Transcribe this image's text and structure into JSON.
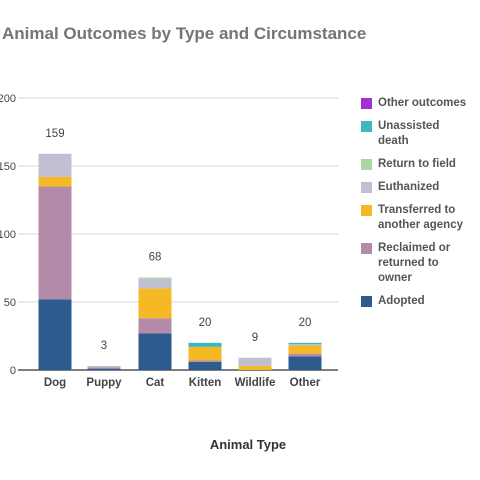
{
  "chart_data": {
    "type": "bar",
    "stacked": true,
    "title": "Animal Outcomes by Type and Circumstance",
    "xlabel": "Animal Type",
    "ylabel": "",
    "ylim": [
      0,
      200
    ],
    "yticks": [
      "200",
      "150",
      "100",
      "50",
      "0"
    ],
    "ytick_values": [
      200,
      150,
      100,
      50,
      0
    ],
    "grid": true,
    "legend_position": "right",
    "categories": [
      "Dog",
      "Puppy",
      "Cat",
      "Kitten",
      "Wildlife",
      "Other"
    ],
    "totals": [
      "159",
      "3",
      "68",
      "20",
      "9",
      "20"
    ],
    "series": [
      {
        "name": "Adopted",
        "color": "#2e5b8e",
        "values": [
          52,
          1,
          27,
          6,
          0,
          10
        ]
      },
      {
        "name": "Reclaimed or returned to owner",
        "color": "#b48aa9",
        "values": [
          83,
          1,
          11,
          1,
          0,
          2
        ]
      },
      {
        "name": "Transferred to another agency",
        "color": "#f5b925",
        "values": [
          7,
          0,
          22,
          10,
          3,
          6
        ]
      },
      {
        "name": "Euthanized",
        "color": "#c0c0d2",
        "values": [
          17,
          1,
          7,
          0,
          6,
          1
        ]
      },
      {
        "name": "Return to field",
        "color": "#a9d9a0",
        "values": [
          0,
          0,
          1,
          0,
          0,
          0
        ]
      },
      {
        "name": "Unassisted death",
        "color": "#3cb8bf",
        "values": [
          0,
          0,
          0,
          3,
          0,
          1
        ]
      },
      {
        "name": "Other outcomes",
        "color": "#a530d0",
        "values": [
          0,
          0,
          0,
          0,
          0,
          0
        ]
      }
    ]
  },
  "legend_order": [
    "Other outcomes",
    "Unassisted death",
    "Return to field",
    "Euthanized",
    "Transferred to another agency",
    "Reclaimed or returned to owner",
    "Adopted"
  ],
  "legend_labels": [
    [
      "Other outcomes"
    ],
    [
      "Unassisted",
      "death"
    ],
    [
      "Return to field"
    ],
    [
      "Euthanized"
    ],
    [
      "Transferred to",
      "another agency"
    ],
    [
      "Reclaimed or",
      "returned to",
      "owner"
    ],
    [
      "Adopted"
    ]
  ]
}
